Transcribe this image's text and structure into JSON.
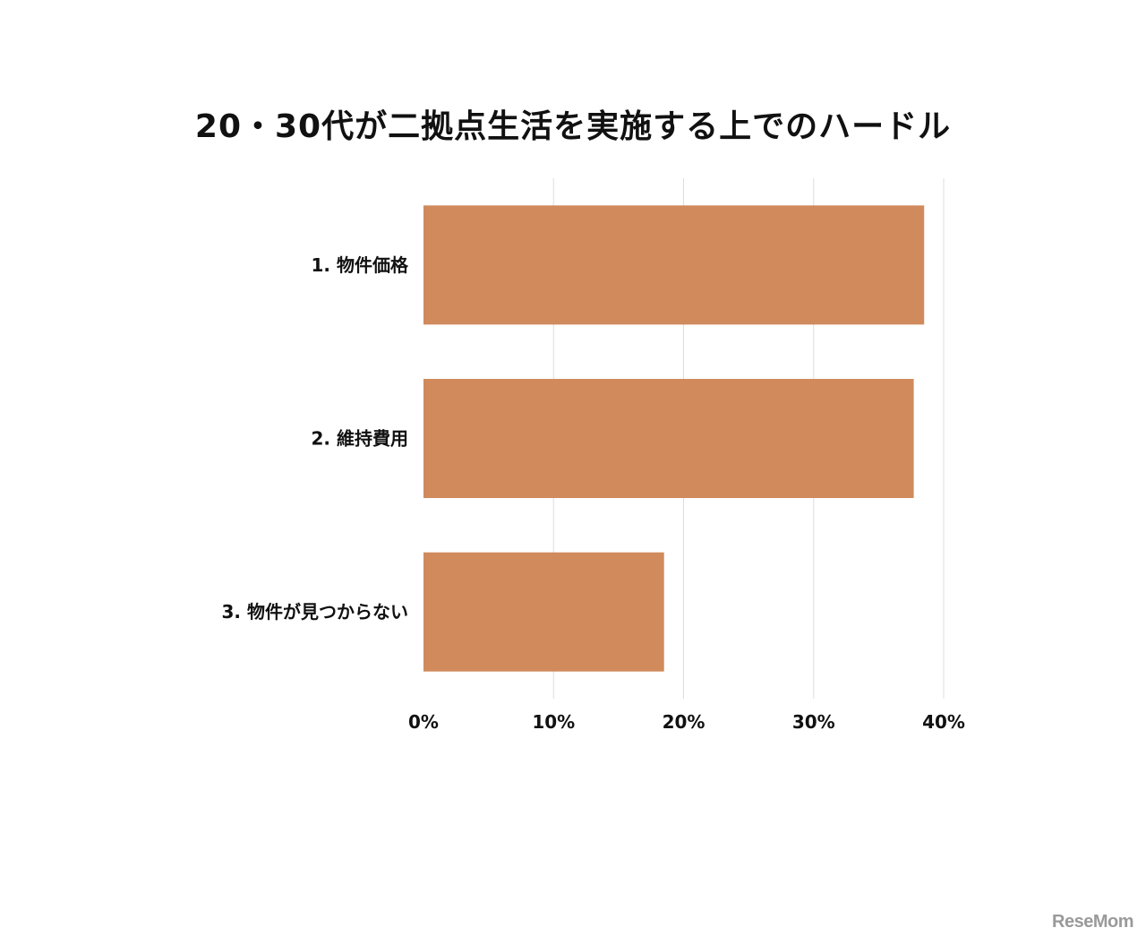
{
  "chart_data": {
    "type": "bar",
    "orientation": "horizontal",
    "title": "20・30代が二拠点生活を実施する上でのハードル",
    "categories": [
      "1. 物件価格",
      "2. 維持費用",
      "3. 物件が見つからない"
    ],
    "values": [
      38.5,
      37.7,
      18.5
    ],
    "xlim": [
      0,
      40
    ],
    "xticks": [
      "0%",
      "10%",
      "20%",
      "30%",
      "40%"
    ],
    "grid": true,
    "bar_color": "#d08a5c",
    "grid_color": "#dddddd"
  },
  "watermark": {
    "text": "ReseMom"
  }
}
